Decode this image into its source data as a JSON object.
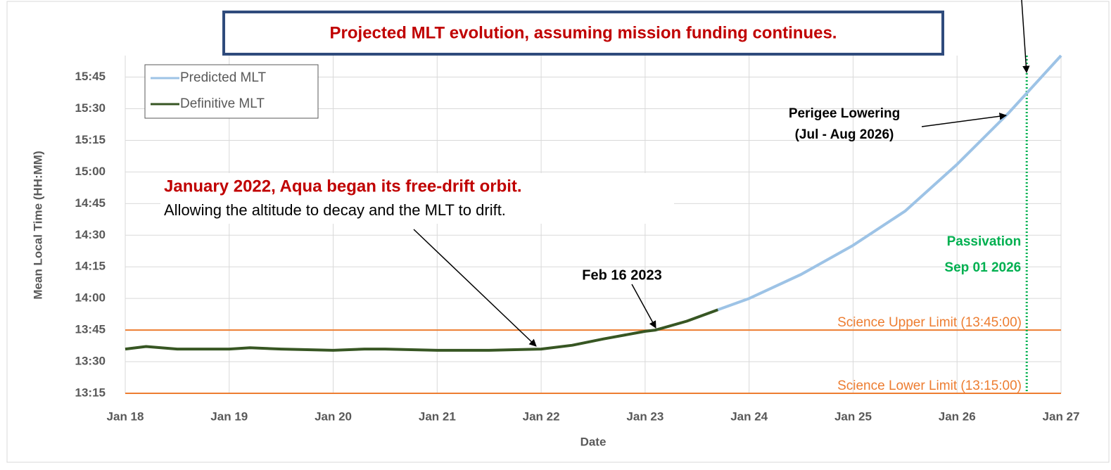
{
  "chart_data": {
    "type": "line",
    "title": "Projected MLT evolution, assuming mission funding continues.",
    "xlabel": "Date",
    "ylabel": "Mean Local Time (HH:MM)",
    "xlim": [
      2018,
      2027
    ],
    "xticks": [
      {
        "value": 2018,
        "label": "Jan 18"
      },
      {
        "value": 2019,
        "label": "Jan 19"
      },
      {
        "value": 2020,
        "label": "Jan 20"
      },
      {
        "value": 2021,
        "label": "Jan 21"
      },
      {
        "value": 2022,
        "label": "Jan 22"
      },
      {
        "value": 2023,
        "label": "Jan 23"
      },
      {
        "value": 2024,
        "label": "Jan 24"
      },
      {
        "value": 2025,
        "label": "Jan 25"
      },
      {
        "value": 2026,
        "label": "Jan 26"
      },
      {
        "value": 2027,
        "label": "Jan 27"
      }
    ],
    "ylim": [
      13.25,
      15.92
    ],
    "yticks": [
      {
        "value": 13.25,
        "label": "13:15"
      },
      {
        "value": 13.5,
        "label": "13:30"
      },
      {
        "value": 13.75,
        "label": "13:45"
      },
      {
        "value": 14,
        "label": "14:00"
      },
      {
        "value": 14.25,
        "label": "14:15"
      },
      {
        "value": 14.5,
        "label": "14:30"
      },
      {
        "value": 14.75,
        "label": "14:45"
      },
      {
        "value": 15,
        "label": "15:00"
      },
      {
        "value": 15.25,
        "label": "15:15"
      },
      {
        "value": 15.5,
        "label": "15:30"
      },
      {
        "value": 15.75,
        "label": "15:45"
      }
    ],
    "grid": true,
    "legend": "upper left",
    "series": [
      {
        "name": "Predicted MLT",
        "color": "#9dc3e6",
        "x": [
          2023.7,
          2024,
          2024.5,
          2025,
          2025.5,
          2026,
          2026.5,
          2027
        ],
        "values": [
          13.91,
          14.0,
          14.19,
          14.42,
          14.69,
          15.06,
          15.47,
          15.92
        ]
      },
      {
        "name": "Definitive MLT",
        "color": "#375623",
        "x": [
          2018,
          2018.2,
          2018.5,
          2019,
          2019.2,
          2019.5,
          2020,
          2020.3,
          2020.5,
          2021,
          2021.5,
          2022,
          2022.3,
          2022.6,
          2023,
          2023.1,
          2023.4,
          2023.7
        ],
        "values": [
          13.6,
          13.62,
          13.6,
          13.6,
          13.61,
          13.6,
          13.59,
          13.6,
          13.6,
          13.59,
          13.59,
          13.6,
          13.63,
          13.68,
          13.74,
          13.75,
          13.82,
          13.91
        ]
      }
    ],
    "reference_lines": [
      {
        "label": "Science Upper Limit (13:45:00)",
        "value": 13.75,
        "color": "#ed7d31"
      },
      {
        "label": "Science Lower Limit (13:15:00)",
        "value": 13.25,
        "color": "#ed7d31"
      }
    ],
    "vertical_lines": [
      {
        "label": [
          "Passivation",
          "Sep 01 2026"
        ],
        "value": 2026.67,
        "color": "#00b050"
      }
    ],
    "annotations": [
      {
        "lines": [
          "January 2022, Aqua began its free-drift orbit.",
          "Allowing the altitude to decay and the MLT to drift."
        ]
      },
      {
        "lines": [
          "Feb 16 2023"
        ]
      },
      {
        "lines": [
          "Perigee Lowering",
          "(Jul - Aug 2026)"
        ]
      }
    ]
  }
}
